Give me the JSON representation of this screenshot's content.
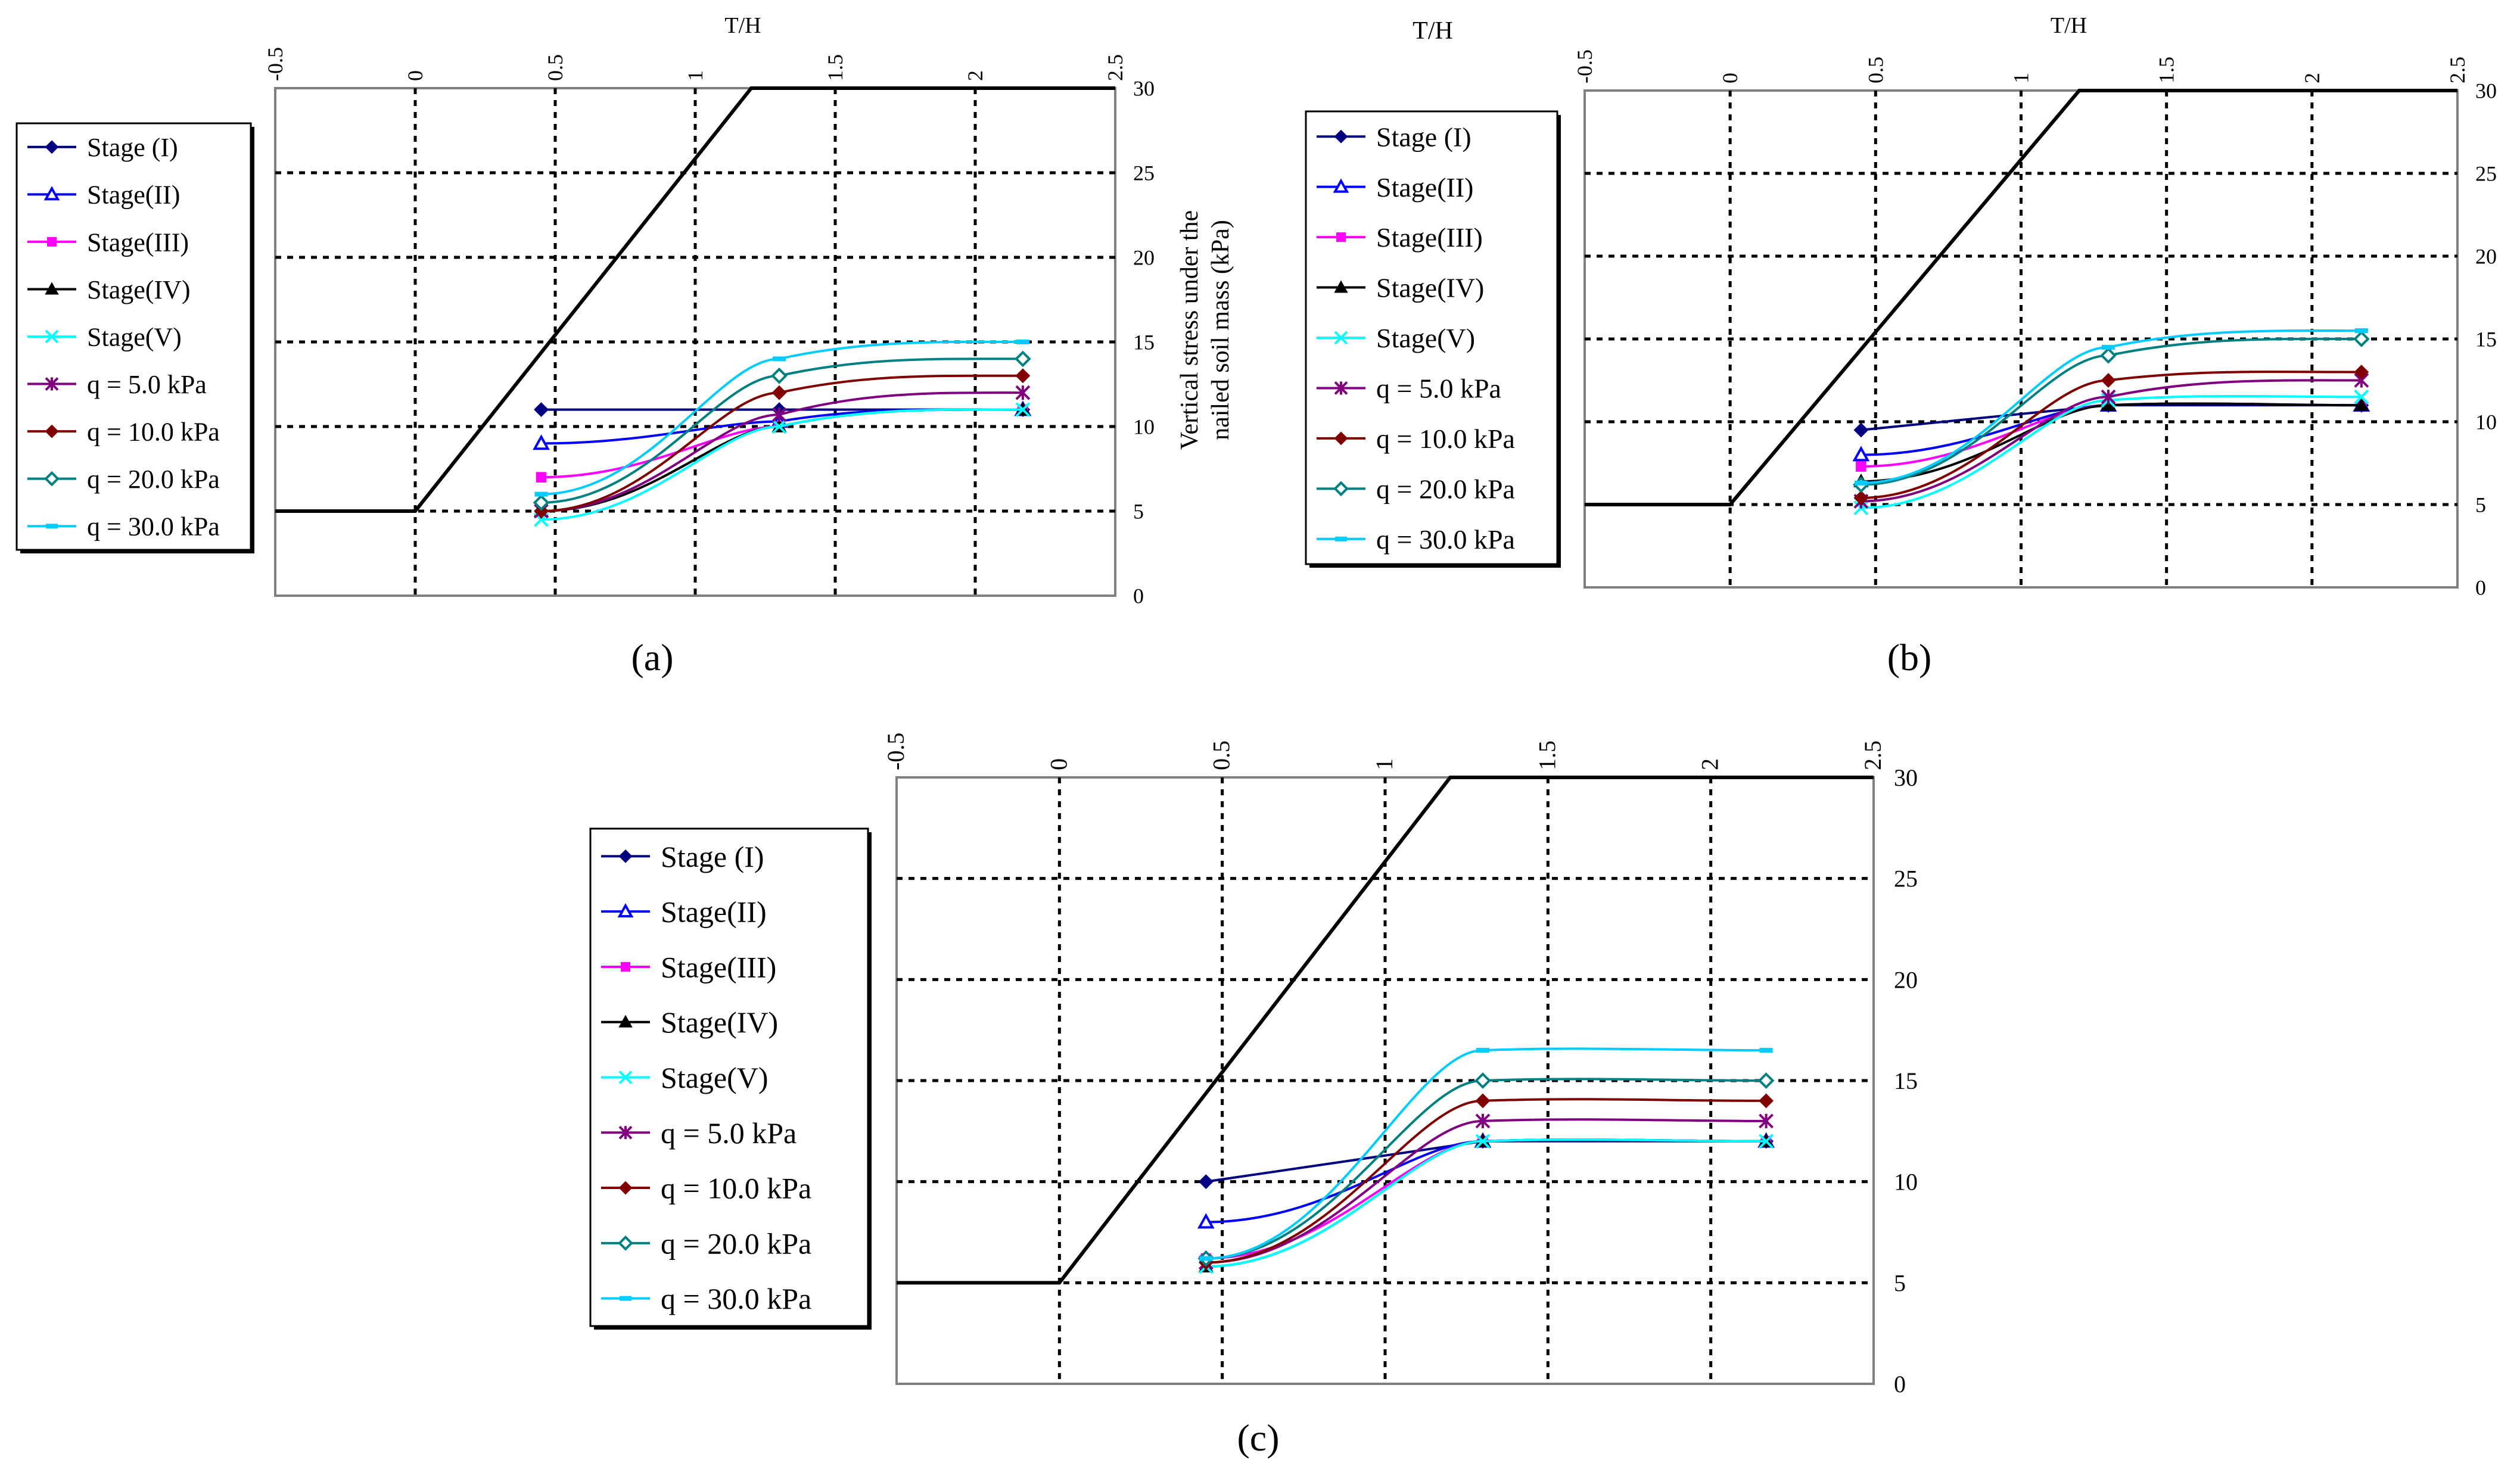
{
  "colors": {
    "outline": "#000000",
    "stage_i": "#000080",
    "stage_ii": "#0000ff",
    "stage_iii": "#ff00ff",
    "stage_iv": "#000000",
    "stage_v": "#00ffff",
    "q5": "#800080",
    "q10": "#800000",
    "q20": "#008080",
    "q30": "#00ccff"
  },
  "chart_data": [
    {
      "type": "line",
      "panel_label": "(a)",
      "panel_letter": "a",
      "xlabel": "T/H",
      "ylabel": "Vertical stress under the nailed soil mass (kPa)",
      "ylabel_lines": [
        "Vertical stress under the",
        "nailed soil mass (kPa)"
      ],
      "xlim": [
        -0.5,
        2.5
      ],
      "ylim": [
        0,
        30
      ],
      "x_ticks": [
        "-0.5",
        "0",
        "0.5",
        "1",
        "1.5",
        "2",
        "2.5"
      ],
      "y_ticks": [
        "0",
        "5",
        "10",
        "15",
        "20",
        "25",
        "30"
      ],
      "grid": true,
      "legend_position": "left",
      "wall_outline": [
        [
          -0.5,
          5
        ],
        [
          0,
          5
        ],
        [
          1.2,
          30
        ],
        [
          2.5,
          30
        ]
      ],
      "series": [
        {
          "name": "Stage (I)",
          "marker": "diamond",
          "color": "stage_i",
          "x": [
            0.45,
            1.3,
            2.17
          ],
          "y": [
            11,
            11,
            11
          ]
        },
        {
          "name": "Stage(II)",
          "marker": "triangle-open",
          "color": "stage_ii",
          "x": [
            0.45,
            1.3,
            2.17
          ],
          "y": [
            9,
            10.3,
            11
          ]
        },
        {
          "name": "Stage(III)",
          "marker": "square",
          "color": "stage_iii",
          "x": [
            0.45,
            1.3,
            2.17
          ],
          "y": [
            7,
            10,
            11
          ]
        },
        {
          "name": "Stage(IV)",
          "marker": "triangle",
          "color": "stage_iv",
          "x": [
            0.45,
            1.3,
            2.17
          ],
          "y": [
            5,
            10,
            11
          ]
        },
        {
          "name": "Stage(V)",
          "marker": "x",
          "color": "stage_v",
          "x": [
            0.45,
            1.3,
            2.17
          ],
          "y": [
            4.5,
            10,
            11
          ]
        },
        {
          "name": "q = 5.0 kPa",
          "marker": "star",
          "color": "q5",
          "x": [
            0.45,
            1.3,
            2.17
          ],
          "y": [
            5,
            10.7,
            12
          ]
        },
        {
          "name": "q = 10.0 kPa",
          "marker": "diamond",
          "color": "q10",
          "x": [
            0.45,
            1.3,
            2.17
          ],
          "y": [
            5,
            12,
            13
          ]
        },
        {
          "name": "q = 20.0 kPa",
          "marker": "diamond-open",
          "color": "q20",
          "x": [
            0.45,
            1.3,
            2.17
          ],
          "y": [
            5.5,
            13,
            14
          ]
        },
        {
          "name": "q = 30.0 kPa",
          "marker": "dash",
          "color": "q30",
          "x": [
            0.45,
            1.3,
            2.17
          ],
          "y": [
            6,
            14,
            15
          ]
        }
      ]
    },
    {
      "type": "line",
      "panel_label": "(b)",
      "panel_letter": "b",
      "xlabel": "T/H",
      "ylabel": "",
      "ylabel_lines": [],
      "xlim": [
        -0.5,
        2.5
      ],
      "ylim": [
        0,
        30
      ],
      "x_ticks": [
        "-0.5",
        "0",
        "0.5",
        "1",
        "1.5",
        "2",
        "2.5"
      ],
      "y_ticks": [
        "0",
        "5",
        "10",
        "15",
        "20",
        "25",
        "30"
      ],
      "grid": true,
      "legend_position": "left",
      "wall_outline": [
        [
          -0.5,
          5
        ],
        [
          0,
          5
        ],
        [
          1.2,
          30
        ],
        [
          2.5,
          30
        ]
      ],
      "series": [
        {
          "name": "Stage (I)",
          "marker": "diamond",
          "color": "stage_i",
          "x": [
            0.45,
            1.3,
            2.17
          ],
          "y": [
            9.5,
            11,
            11
          ]
        },
        {
          "name": "Stage(II)",
          "marker": "triangle-open",
          "color": "stage_ii",
          "x": [
            0.45,
            1.3,
            2.17
          ],
          "y": [
            8,
            11,
            11
          ]
        },
        {
          "name": "Stage(III)",
          "marker": "square",
          "color": "stage_iii",
          "x": [
            0.45,
            1.3,
            2.17
          ],
          "y": [
            7.3,
            11,
            11
          ]
        },
        {
          "name": "Stage(IV)",
          "marker": "triangle",
          "color": "stage_iv",
          "x": [
            0.45,
            1.3,
            2.17
          ],
          "y": [
            6.4,
            11,
            11
          ]
        },
        {
          "name": "Stage(V)",
          "marker": "x",
          "color": "stage_v",
          "x": [
            0.45,
            1.3,
            2.17
          ],
          "y": [
            4.8,
            11.3,
            11.5
          ]
        },
        {
          "name": "q = 5.0 kPa",
          "marker": "star",
          "color": "q5",
          "x": [
            0.45,
            1.3,
            2.17
          ],
          "y": [
            5.2,
            11.5,
            12.5
          ]
        },
        {
          "name": "q = 10.0 kPa",
          "marker": "diamond",
          "color": "q10",
          "x": [
            0.45,
            1.3,
            2.17
          ],
          "y": [
            5.4,
            12.5,
            13
          ]
        },
        {
          "name": "q = 20.0 kPa",
          "marker": "diamond-open",
          "color": "q20",
          "x": [
            0.45,
            1.3,
            2.17
          ],
          "y": [
            6.2,
            14,
            15
          ]
        },
        {
          "name": "q = 30.0 kPa",
          "marker": "dash",
          "color": "q30",
          "x": [
            0.45,
            1.3,
            2.17
          ],
          "y": [
            6.3,
            14.5,
            15.5
          ]
        }
      ]
    },
    {
      "type": "line",
      "panel_label": "(c)",
      "panel_letter": "c",
      "xlabel": "T/H",
      "ylabel": "",
      "ylabel_lines": [],
      "xlim": [
        -0.5,
        2.5
      ],
      "ylim": [
        0,
        30
      ],
      "x_ticks": [
        "-0.5",
        "0",
        "0.5",
        "1",
        "1.5",
        "2",
        "2.5"
      ],
      "y_ticks": [
        "0",
        "5",
        "10",
        "15",
        "20",
        "25",
        "30"
      ],
      "grid": true,
      "legend_position": "left",
      "wall_outline": [
        [
          -0.5,
          5
        ],
        [
          0,
          5
        ],
        [
          1.2,
          30
        ],
        [
          2.5,
          30
        ]
      ],
      "series": [
        {
          "name": "Stage (I)",
          "marker": "diamond",
          "color": "stage_i",
          "x": [
            0.45,
            1.3,
            2.17
          ],
          "y": [
            10,
            12,
            12
          ]
        },
        {
          "name": "Stage(II)",
          "marker": "triangle-open",
          "color": "stage_ii",
          "x": [
            0.45,
            1.3,
            2.17
          ],
          "y": [
            8,
            12,
            12
          ]
        },
        {
          "name": "Stage(III)",
          "marker": "square",
          "color": "stage_iii",
          "x": [
            0.45,
            1.3,
            2.17
          ],
          "y": [
            6.2,
            12,
            12
          ]
        },
        {
          "name": "Stage(IV)",
          "marker": "triangle",
          "color": "stage_iv",
          "x": [
            0.45,
            1.3,
            2.17
          ],
          "y": [
            5.8,
            12,
            12
          ]
        },
        {
          "name": "Stage(V)",
          "marker": "x",
          "color": "stage_v",
          "x": [
            0.45,
            1.3,
            2.17
          ],
          "y": [
            5.8,
            12,
            12
          ]
        },
        {
          "name": "q = 5.0 kPa",
          "marker": "star",
          "color": "q5",
          "x": [
            0.45,
            1.3,
            2.17
          ],
          "y": [
            6,
            13,
            13
          ]
        },
        {
          "name": "q = 10.0 kPa",
          "marker": "diamond",
          "color": "q10",
          "x": [
            0.45,
            1.3,
            2.17
          ],
          "y": [
            6,
            14,
            14
          ]
        },
        {
          "name": "q = 20.0 kPa",
          "marker": "diamond-open",
          "color": "q20",
          "x": [
            0.45,
            1.3,
            2.17
          ],
          "y": [
            6.2,
            15,
            15
          ]
        },
        {
          "name": "q = 30.0 kPa",
          "marker": "dash",
          "color": "q30",
          "x": [
            0.45,
            1.3,
            2.17
          ],
          "y": [
            6.2,
            16.5,
            16.5
          ]
        }
      ]
    }
  ]
}
